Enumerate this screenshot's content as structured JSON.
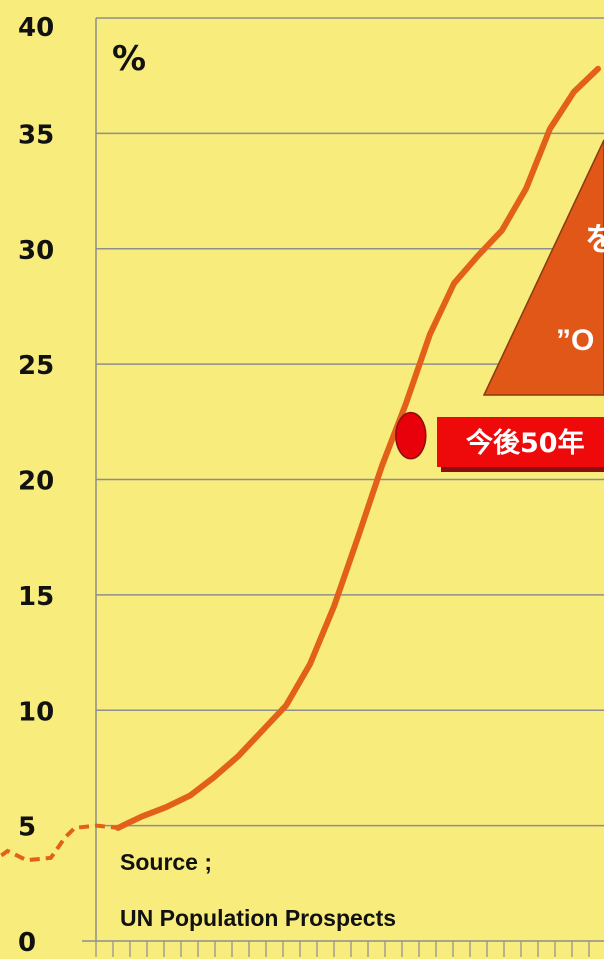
{
  "chart_data": {
    "type": "line",
    "unit_label": "%",
    "ylim": [
      0,
      40
    ],
    "y_ticks": [
      {
        "value": 0,
        "label": "0"
      },
      {
        "value": 5,
        "label": "5"
      },
      {
        "value": 10,
        "label": "10"
      },
      {
        "value": 15,
        "label": "15"
      },
      {
        "value": 20,
        "label": "20"
      },
      {
        "value": 25,
        "label": "25"
      },
      {
        "value": 30,
        "label": "30"
      },
      {
        "value": 35,
        "label": "35"
      },
      {
        "value": 40,
        "label": "40"
      }
    ],
    "grid": true,
    "series": [
      {
        "color": "#e2601a",
        "points": [
          [
            0,
            4.9
          ],
          [
            1,
            5.4
          ],
          [
            2,
            5.8
          ],
          [
            3,
            6.3
          ],
          [
            4,
            7.1
          ],
          [
            5,
            8.0
          ],
          [
            6,
            9.1
          ],
          [
            7,
            10.2
          ],
          [
            8,
            12.0
          ],
          [
            9,
            14.5
          ],
          [
            10,
            17.5
          ],
          [
            11,
            20.6
          ],
          [
            12,
            23.3
          ],
          [
            13,
            26.3
          ],
          [
            14,
            28.5
          ],
          [
            15,
            29.7
          ],
          [
            16,
            30.8
          ],
          [
            17,
            32.6
          ],
          [
            18,
            35.2
          ],
          [
            19,
            36.8
          ],
          [
            20,
            37.8
          ]
        ]
      }
    ],
    "leading_dashed": [
      [
        -5.4,
        3.3
      ],
      [
        -4.6,
        3.9
      ],
      [
        -3.8,
        3.5
      ],
      [
        -2.8,
        3.6
      ],
      [
        -2.2,
        4.5
      ],
      [
        -1.8,
        4.9
      ],
      [
        -0.9,
        5.0
      ],
      [
        0,
        4.9
      ]
    ],
    "marker": {
      "x": 12.2,
      "y": 21.9,
      "color": "#e8000a"
    },
    "annotations": {
      "triangle_line1": "を",
      "triangle_line2": "”O",
      "banner": "今後50年"
    },
    "source_line1": "Source ;",
    "source_line2": "UN Population Prospects",
    "colors": {
      "background": "#f7ec7c",
      "grid": "#8e8e8e",
      "line": "#e2601a",
      "triangle": "#e05717",
      "banner": "#ee0a0a"
    }
  }
}
